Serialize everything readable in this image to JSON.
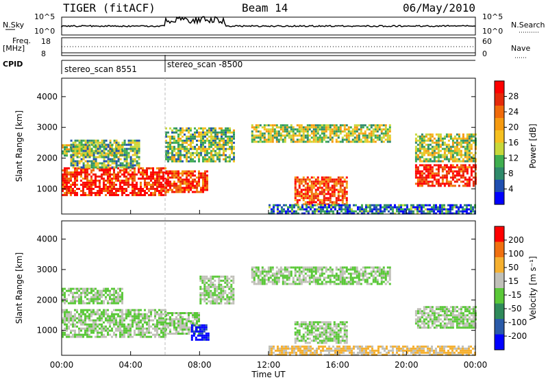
{
  "header": {
    "radar": "TIGER (fitACF)",
    "beam": "Beam 14",
    "date": "06/May/2010"
  },
  "top_panel": {
    "nsky_label": "N.Sky",
    "nsearch_label": "N.Search",
    "nave_label": "Nave",
    "freq_label_1": "Freq.",
    "freq_label_2": "[MHz]",
    "cpid_label": "CPID",
    "nsky_ticks": [
      "10^5",
      "10^0"
    ],
    "nsearch_ticks": [
      "10^5",
      "10^0"
    ],
    "freq_ticks": [
      "18",
      "8"
    ],
    "nave_ticks": [
      "60",
      "0"
    ],
    "cpid_segments": [
      {
        "start_hour": 0,
        "label": "stereo_scan 8551"
      },
      {
        "start_hour": 6,
        "label": "stereo_scan -8500"
      }
    ]
  },
  "chart_data": [
    {
      "type": "heatmap",
      "panel": "power",
      "ylabel": "Slant Range [km]",
      "ylim": [
        180,
        4600
      ],
      "yticks": [
        "1000",
        "2000",
        "3000",
        "4000"
      ],
      "xlim_hours": [
        0,
        24
      ],
      "colorbar_label": "Power [dB]",
      "colorbar_ticks": [
        "4",
        "8",
        "12",
        "16",
        "20",
        "24",
        "28"
      ],
      "colorbar_colors": [
        "#0000ff",
        "#1f4fb0",
        "#2f8a6a",
        "#3fae4f",
        "#c8d83a",
        "#f5c020",
        "#f59a10",
        "#f06a0a",
        "#e52a0a",
        "#ff0000"
      ],
      "bands": [
        {
          "t0": 0.0,
          "t1": 6.0,
          "r0": 800,
          "r1": 1700,
          "level": 0.9
        },
        {
          "t0": 0.0,
          "t1": 3.5,
          "r0": 2100,
          "r1": 2450,
          "level": 0.45
        },
        {
          "t0": 0.5,
          "t1": 4.5,
          "r0": 1700,
          "r1": 2600,
          "level": 0.35
        },
        {
          "t0": 6.0,
          "t1": 8.5,
          "r0": 900,
          "r1": 1600,
          "level": 0.85
        },
        {
          "t0": 6.0,
          "t1": 10.0,
          "r0": 1900,
          "r1": 3000,
          "level": 0.4
        },
        {
          "t0": 11.0,
          "t1": 19.0,
          "r0": 2500,
          "r1": 3100,
          "level": 0.45
        },
        {
          "t0": 13.5,
          "t1": 16.5,
          "r0": 500,
          "r1": 1400,
          "level": 0.8
        },
        {
          "t0": 12.0,
          "t1": 24.0,
          "r0": 200,
          "r1": 500,
          "level": 0.2
        },
        {
          "t0": 20.5,
          "t1": 24.0,
          "r0": 1100,
          "r1": 1800,
          "level": 0.9
        },
        {
          "t0": 20.5,
          "t1": 24.0,
          "r0": 1900,
          "r1": 2800,
          "level": 0.45
        }
      ]
    },
    {
      "type": "heatmap",
      "panel": "velocity",
      "ylabel": "Slant Range [km]",
      "ylim": [
        180,
        4600
      ],
      "yticks": [
        "1000",
        "2000",
        "3000",
        "4000"
      ],
      "xlabel": "Time UT",
      "xticks": [
        "00:00",
        "04:00",
        "08:00",
        "12:00",
        "16:00",
        "20:00",
        "00:00"
      ],
      "xlim_hours": [
        0,
        24
      ],
      "colorbar_label": "Velocity [m s⁻¹]",
      "colorbar_ticks": [
        "200",
        "100",
        "50",
        "15",
        "-15",
        "-50",
        "-100",
        "-200"
      ],
      "colorbar_colors": [
        "#0000ff",
        "#2a5aa8",
        "#2f8a5a",
        "#5ac838",
        "#c0c0b8",
        "#f5b030",
        "#f07010",
        "#ff0000"
      ],
      "bands": [
        {
          "t0": 0.0,
          "t1": 6.0,
          "r0": 800,
          "r1": 1700,
          "level": 0.5
        },
        {
          "t0": 0.0,
          "t1": 3.5,
          "r0": 1900,
          "r1": 2400,
          "level": 0.5
        },
        {
          "t0": 6.0,
          "t1": 8.0,
          "r0": 900,
          "r1": 1600,
          "level": 0.5
        },
        {
          "t0": 7.5,
          "t1": 8.5,
          "r0": 700,
          "r1": 1200,
          "level": 0.05
        },
        {
          "t0": 8.0,
          "t1": 10.0,
          "r0": 1900,
          "r1": 2800,
          "level": 0.5
        },
        {
          "t0": 11.0,
          "t1": 19.0,
          "r0": 2500,
          "r1": 3100,
          "level": 0.5
        },
        {
          "t0": 13.5,
          "t1": 16.5,
          "r0": 600,
          "r1": 1300,
          "level": 0.5
        },
        {
          "t0": 12.0,
          "t1": 24.0,
          "r0": 200,
          "r1": 500,
          "level": 0.65
        },
        {
          "t0": 20.5,
          "t1": 24.0,
          "r0": 1100,
          "r1": 1800,
          "level": 0.5
        }
      ]
    }
  ]
}
